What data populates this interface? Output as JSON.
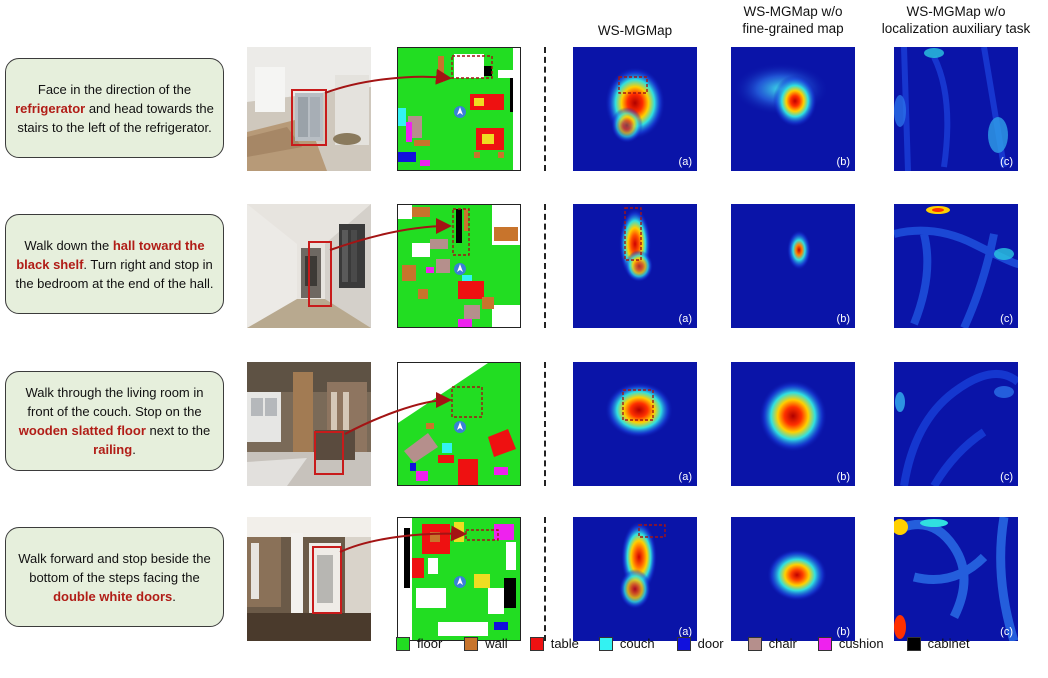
{
  "headers": {
    "col_a": "WS-MGMap",
    "col_b_line1": "WS-MGMap w/o",
    "col_b_line2": "fine-grained map",
    "col_c_line1": "WS-MGMap w/o",
    "col_c_line2": "localization auxiliary task"
  },
  "panel_tags": {
    "a": "(a)",
    "b": "(b)",
    "c": "(c)"
  },
  "rows": [
    {
      "parts": [
        {
          "text": "Face in the direction of the ",
          "hl": false
        },
        {
          "text": "refrigerator",
          "hl": true
        },
        {
          "text": " and head towards the stairs to the left of the refrigerator.",
          "hl": false
        }
      ]
    },
    {
      "parts": [
        {
          "text": "Walk down the ",
          "hl": false
        },
        {
          "text": "hall toward the black shelf",
          "hl": true
        },
        {
          "text": ". Turn right and stop in the bedroom at the end of the hall.",
          "hl": false
        }
      ]
    },
    {
      "parts": [
        {
          "text": "Walk through the living room in front of the couch. Stop on the ",
          "hl": false
        },
        {
          "text": "wooden slatted floor",
          "hl": true
        },
        {
          "text": " next to the ",
          "hl": false
        },
        {
          "text": "railing",
          "hl": true
        },
        {
          "text": ".",
          "hl": false
        }
      ]
    },
    {
      "parts": [
        {
          "text": "Walk forward and stop beside the bottom of the steps facing the ",
          "hl": false
        },
        {
          "text": "double white doors",
          "hl": true
        },
        {
          "text": ".",
          "hl": false
        }
      ]
    }
  ],
  "legend": [
    {
      "label": "floor",
      "color": "#22dd22"
    },
    {
      "label": "wall",
      "color": "#c8742c"
    },
    {
      "label": "table",
      "color": "#ee1111"
    },
    {
      "label": "couch",
      "color": "#33f2f2"
    },
    {
      "label": "door",
      "color": "#1111dd"
    },
    {
      "label": "chair",
      "color": "#b58f8c"
    },
    {
      "label": "cushion",
      "color": "#ee22ee"
    },
    {
      "label": "cabinet",
      "color": "#000000"
    }
  ],
  "colors": {
    "highlight": "#b11d17",
    "box_fill": "#e6efdc",
    "heat_bg": "#0a14a8",
    "arrow": "#a31414"
  }
}
